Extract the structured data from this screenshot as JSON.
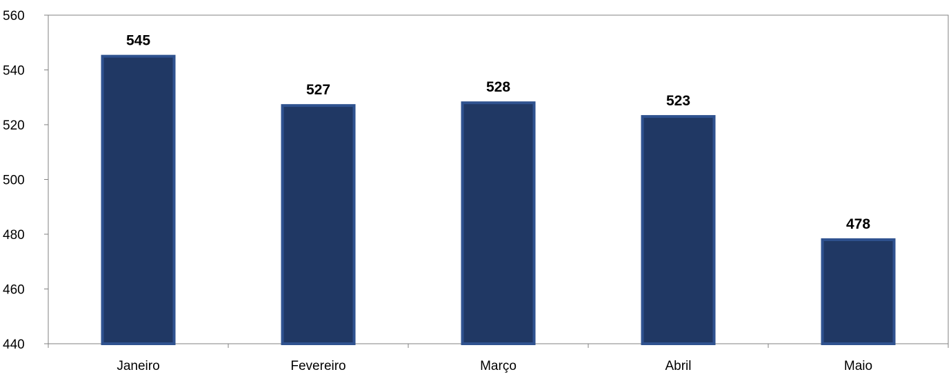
{
  "chart_data": {
    "type": "bar",
    "categories": [
      "Janeiro",
      "Fevereiro",
      "Março",
      "Abril",
      "Maio"
    ],
    "values": [
      545,
      527,
      528,
      523,
      478
    ],
    "data_labels": [
      "545",
      "527",
      "528",
      "523",
      "478"
    ],
    "title": "",
    "xlabel": "",
    "ylabel": "",
    "ylim": [
      440,
      560
    ],
    "yticks": [
      440,
      460,
      480,
      500,
      520,
      540,
      560
    ],
    "ytick_labels": [
      "440",
      "460",
      "480",
      "500",
      "520",
      "540",
      "560"
    ],
    "grid": false,
    "legend": "none",
    "colors": {
      "bar_fill": "#203864",
      "bar_border": "#2F528F",
      "axis": "#808080",
      "text": "#000000"
    }
  }
}
